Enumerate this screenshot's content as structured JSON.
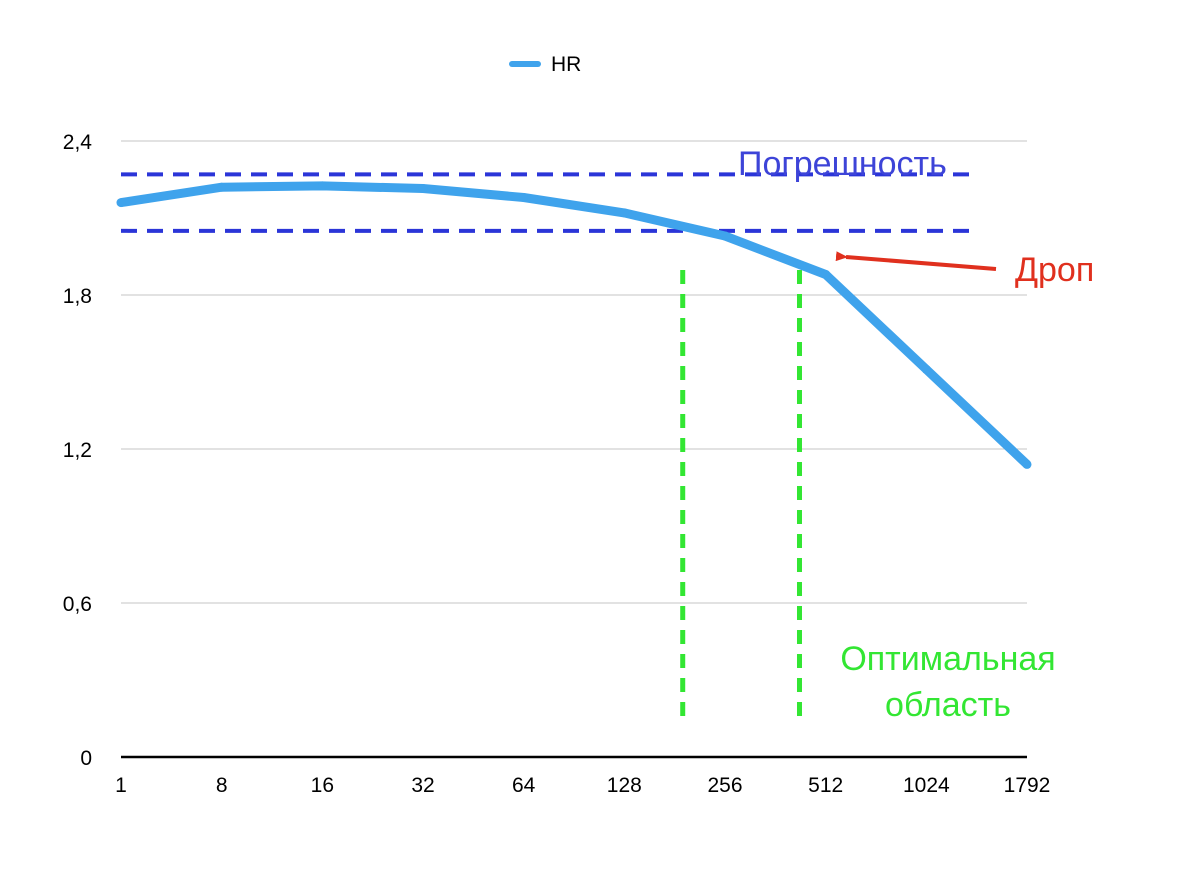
{
  "chart_data": {
    "type": "line",
    "categories": [
      "1",
      "8",
      "16",
      "32",
      "64",
      "128",
      "256",
      "512",
      "1024",
      "1792"
    ],
    "series": [
      {
        "name": "HR",
        "color": "#3fa3ec",
        "values": [
          2.16,
          2.22,
          2.225,
          2.215,
          2.18,
          2.12,
          2.03,
          1.88,
          1.51,
          1.14
        ]
      }
    ],
    "ylim": [
      0,
      2.4
    ],
    "yticks": [
      {
        "value": 0,
        "label": "0"
      },
      {
        "value": 0.6,
        "label": "0,6"
      },
      {
        "value": 1.2,
        "label": "1,2"
      },
      {
        "value": 1.8,
        "label": "1,8"
      },
      {
        "value": 2.4,
        "label": "2,4"
      }
    ],
    "grid": true,
    "legend": "top-center",
    "error_band": {
      "label": "Погрешность",
      "upper": 2.27,
      "lower": 2.05,
      "color": "#2b35d8"
    },
    "optimal_region": {
      "label_line1": "Оптимальная",
      "label_line2": "область",
      "from_category": 5.58,
      "to_category": 6.74,
      "color": "#33e633"
    },
    "drop_annotation": {
      "label": "Дроп",
      "at_category": 7.0,
      "color": "#e0301e"
    }
  }
}
